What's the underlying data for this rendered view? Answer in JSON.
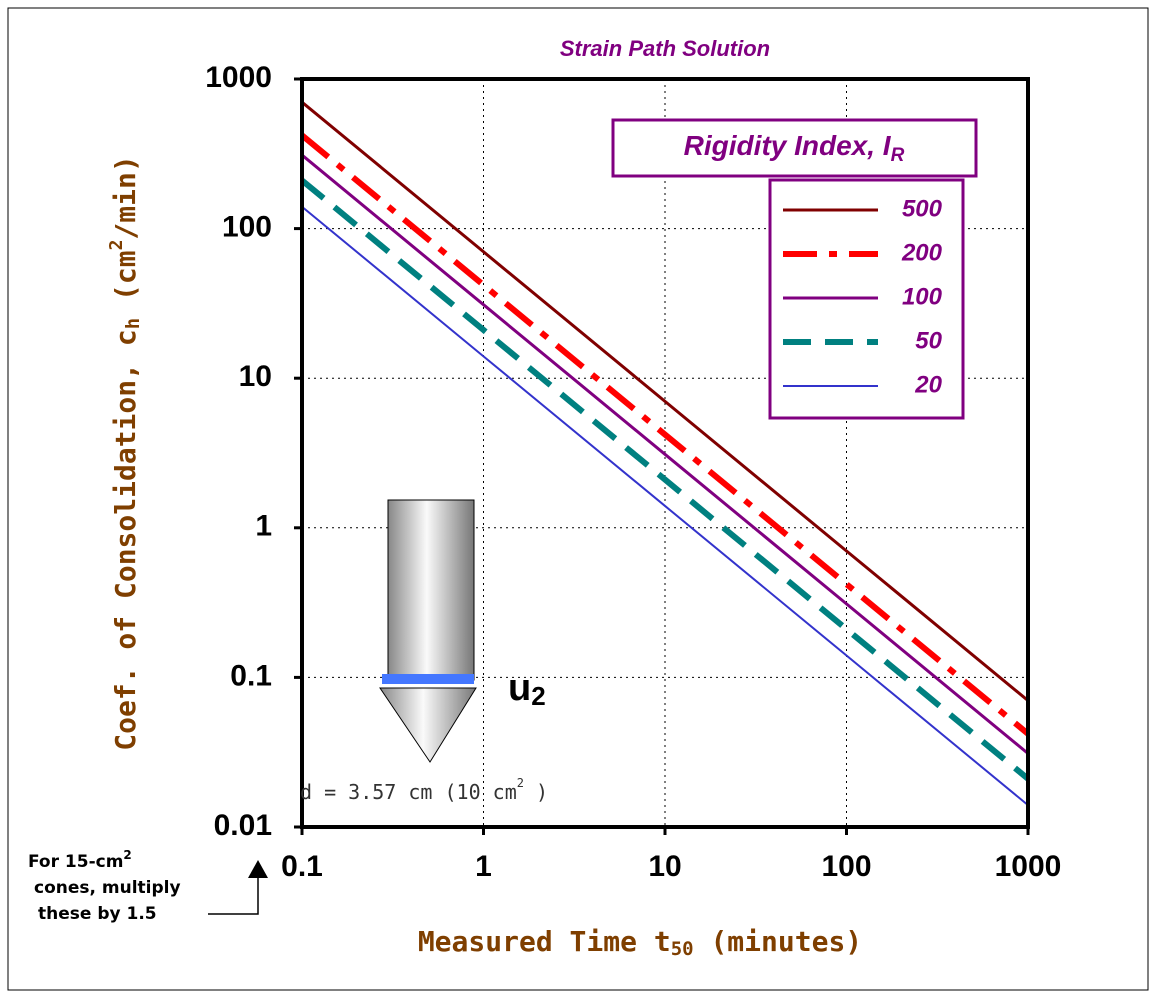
{
  "chart_data": {
    "type": "line",
    "title": "Strain Path Solution",
    "y_label": {
      "text": "Coef. of Consolidation, c",
      "sub": "h",
      "mid": " (cm",
      "sup": "2",
      "end": "/min)"
    },
    "x_label": {
      "text": "Measured Time t",
      "sub": "50",
      "end": " (minutes)"
    },
    "legend_title": {
      "text": "Rigidity Index, I",
      "sub": "R"
    },
    "legend": "upper right",
    "x_log": true,
    "y_log": true,
    "grid": true,
    "xlim": [
      0.1,
      1000
    ],
    "xticks": [
      0.1,
      1,
      10,
      100,
      1000
    ],
    "ylim": [
      0.01,
      1000
    ],
    "yticks": [
      1000,
      100,
      10,
      1,
      0.1,
      0.01
    ],
    "x": [
      0.1,
      1,
      10,
      100,
      1000
    ],
    "series": [
      {
        "name": "500",
        "color": "#800000",
        "dash": "solid",
        "width": 3,
        "values": [
          700,
          70,
          7,
          0.7,
          0.07
        ]
      },
      {
        "name": "200",
        "color": "#ff0000",
        "dash": "dashdot",
        "width": 6,
        "values": [
          420,
          42,
          4.2,
          0.42,
          0.042
        ]
      },
      {
        "name": "100",
        "color": "#800080",
        "dash": "solid",
        "width": 3,
        "values": [
          310,
          31,
          3.1,
          0.31,
          0.031
        ]
      },
      {
        "name": "50",
        "color": "#008080",
        "dash": "dashed",
        "width": 6,
        "values": [
          210,
          21,
          2.1,
          0.21,
          0.021
        ]
      },
      {
        "name": "20",
        "color": "#3333cc",
        "dash": "solid",
        "width": 2,
        "values": [
          140,
          14,
          1.4,
          0.14,
          0.014
        ]
      }
    ],
    "probe_label": {
      "text": "u",
      "sub": "2"
    },
    "probe_size": {
      "text": "d = 3.57 cm  (10 cm",
      "sup": "2",
      "end": " )"
    },
    "note": {
      "line1": "For 15-cm",
      "sup": "2",
      "line2": "cones, multiply",
      "line3": "these by 1.5"
    }
  }
}
